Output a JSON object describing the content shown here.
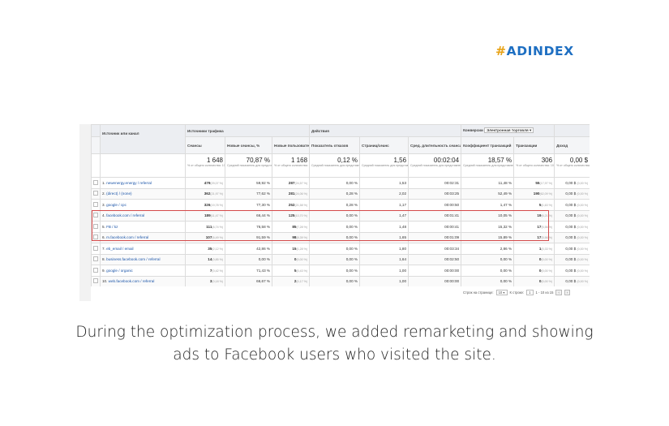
{
  "logo": {
    "hash": "#",
    "word": "ADINDEX"
  },
  "caption": {
    "line1": "During the optimization process, we added remarketing and showing",
    "line2": "ads to Facebook users who visited the site."
  },
  "report": {
    "groups": {
      "source": "Источник или канал",
      "traffic": "Источники трафика",
      "actions": "Действия",
      "conversions_label": "Конверсии",
      "conversions_select": "Электронная торговля",
      "income": "Доход"
    },
    "columns": [
      "Сеансы",
      "Новые сеансы, %",
      "Новые пользователи",
      "Показатель отказов",
      "Страниц/сеанс",
      "Сред. длительность сеанса",
      "Коэффициент транзакций",
      "Транзакции",
      "Доход"
    ],
    "totals": [
      {
        "big": "1 648",
        "sub": "% от общего количества: 100,00 % (1 648)"
      },
      {
        "big": "70,87 %",
        "sub": "Средний показатель для представления: 70,87 % (0,00 %)"
      },
      {
        "big": "1 168",
        "sub": "% от общего количества: 100,00 % (1 168)"
      },
      {
        "big": "0,12 %",
        "sub": "Средний показатель для представления: 0,12 % (0,00 %)"
      },
      {
        "big": "1,56",
        "sub": "Средний показатель для представления: 1,56 (0,00 %)"
      },
      {
        "big": "00:02:04",
        "sub": "Средний показатель для представления: 00:02:04 (0,00 %)"
      },
      {
        "big": "18,57 %",
        "sub": "Средний показатель для представления: 18,57 % (0,00 %)"
      },
      {
        "big": "306",
        "sub": "% от общего количества: 100,00 % (306)"
      },
      {
        "big": "0,00 $",
        "sub": "% от общего количества: 0,00 % (0,00 $)"
      }
    ],
    "rows": [
      {
        "n": "1.",
        "src": "newenergy.energy / referral",
        "s": "479",
        "sp": "(29,07 %)",
        "ns": "59,92 %",
        "nu": "287",
        "nup": "(24,57 %)",
        "br": "0,00 %",
        "pps": "1,53",
        "dur": "00:02:31",
        "cr": "11,48 %",
        "tr": "55",
        "trp": "(17,97 %)",
        "inc": "0,00 $",
        "incp": "(0,00 %)"
      },
      {
        "n": "2.",
        "src": "(direct) / (none)",
        "s": "362",
        "sp": "(21,97 %)",
        "ns": "77,62 %",
        "nu": "281",
        "nup": "(24,06 %)",
        "br": "0,28 %",
        "pps": "2,02",
        "dur": "00:03:25",
        "cr": "52,49 %",
        "tr": "190",
        "trp": "(62,09 %)",
        "inc": "0,00 $",
        "incp": "(0,00 %)"
      },
      {
        "n": "3.",
        "src": "google / cpc",
        "s": "326",
        "sp": "(19,78 %)",
        "ns": "77,30 %",
        "nu": "252",
        "nup": "(21,58 %)",
        "br": "0,28 %",
        "pps": "1,17",
        "dur": "00:00:50",
        "cr": "1,47 %",
        "tr": "5",
        "trp": "(1,63 %)",
        "inc": "0,00 $",
        "incp": "(0,00 %)"
      },
      {
        "n": "4.",
        "src": "facebook.com / referral",
        "s": "189",
        "sp": "(11,47 %)",
        "ns": "66,44 %",
        "nu": "125",
        "nup": "(10,70 %)",
        "br": "0,00 %",
        "pps": "1,47",
        "dur": "00:01:41",
        "cr": "10,05 %",
        "tr": "19",
        "trp": "(6,21 %)",
        "inc": "0,00 $",
        "incp": "(0,00 %)"
      },
      {
        "n": "5.",
        "src": "FB / kz",
        "s": "111",
        "sp": "(6,74 %)",
        "ns": "76,58 %",
        "nu": "85",
        "nup": "(7,28 %)",
        "br": "0,00 %",
        "pps": "1,48",
        "dur": "00:00:41",
        "cr": "15,32 %",
        "tr": "17",
        "trp": "(5,56 %)",
        "inc": "0,00 $",
        "incp": "(0,00 %)"
      },
      {
        "n": "6.",
        "src": "m.facebook.com / referral",
        "s": "107",
        "sp": "(6,49 %)",
        "ns": "91,59 %",
        "nu": "98",
        "nup": "(8,39 %)",
        "br": "0,00 %",
        "pps": "1,65",
        "dur": "00:01:09",
        "cr": "15,89 %",
        "tr": "17",
        "trp": "(5,56 %)",
        "inc": "0,00 $",
        "incp": "(0,00 %)"
      },
      {
        "n": "7.",
        "src": "eb_email / email",
        "s": "35",
        "sp": "(2,12 %)",
        "ns": "42,86 %",
        "nu": "15",
        "nup": "(1,28 %)",
        "br": "0,00 %",
        "pps": "1,80",
        "dur": "00:03:34",
        "cr": "2,86 %",
        "tr": "1",
        "trp": "(0,33 %)",
        "inc": "0,00 $",
        "incp": "(0,00 %)"
      },
      {
        "n": "8.",
        "src": "business.facebook.com / referral",
        "s": "14",
        "sp": "(0,85 %)",
        "ns": "0,00 %",
        "nu": "0",
        "nup": "(0,00 %)",
        "br": "0,00 %",
        "pps": "1,64",
        "dur": "00:02:50",
        "cr": "0,00 %",
        "tr": "0",
        "trp": "(0,00 %)",
        "inc": "0,00 $",
        "incp": "(0,00 %)"
      },
      {
        "n": "9.",
        "src": "google / organic",
        "s": "7",
        "sp": "(0,42 %)",
        "ns": "71,43 %",
        "nu": "5",
        "nup": "(0,43 %)",
        "br": "0,00 %",
        "pps": "1,00",
        "dur": "00:00:00",
        "cr": "0,00 %",
        "tr": "0",
        "trp": "(0,00 %)",
        "inc": "0,00 $",
        "incp": "(0,00 %)"
      },
      {
        "n": "10.",
        "src": "web.facebook.com / referral",
        "s": "3",
        "sp": "(0,18 %)",
        "ns": "66,67 %",
        "nu": "2",
        "nup": "(0,17 %)",
        "br": "0,00 %",
        "pps": "1,00",
        "dur": "00:00:00",
        "cr": "0,00 %",
        "tr": "0",
        "trp": "(0,00 %)",
        "inc": "0,00 $",
        "incp": "(0,00 %)"
      }
    ],
    "footer": {
      "rows_label": "Строк на странице:",
      "rows_value": "10",
      "goto_label": "К строке:",
      "goto_value": "1",
      "range": "1 - 10 из 15",
      "prev": "‹",
      "next": "›"
    }
  }
}
